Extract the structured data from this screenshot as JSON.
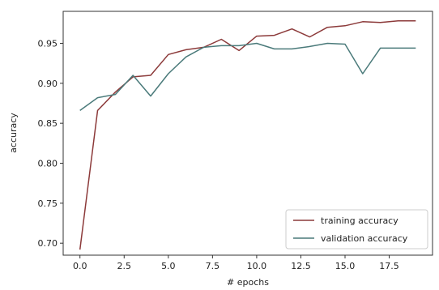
{
  "chart_data": {
    "type": "line",
    "title": "",
    "xlabel": "# epochs",
    "ylabel": "accuracy",
    "xlim": [
      -0.95,
      19.95
    ],
    "ylim": [
      0.685,
      0.99
    ],
    "xticks": [
      0.0,
      2.5,
      5.0,
      7.5,
      10.0,
      12.5,
      15.0,
      17.5
    ],
    "xtick_labels": [
      "0.0",
      "2.5",
      "5.0",
      "7.5",
      "10.0",
      "12.5",
      "15.0",
      "17.5"
    ],
    "yticks": [
      0.7,
      0.75,
      0.8,
      0.85,
      0.9,
      0.95
    ],
    "ytick_labels": [
      "0.70",
      "0.75",
      "0.80",
      "0.85",
      "0.90",
      "0.95"
    ],
    "grid": false,
    "legend_position": "bottom-right",
    "x": [
      0,
      1,
      2,
      3,
      4,
      5,
      6,
      7,
      8,
      9,
      10,
      11,
      12,
      13,
      14,
      15,
      16,
      17,
      18,
      19
    ],
    "series": [
      {
        "name": "training accuracy",
        "color": "#8c3a3a",
        "values": [
          0.692,
          0.866,
          0.889,
          0.908,
          0.91,
          0.936,
          0.942,
          0.945,
          0.955,
          0.941,
          0.959,
          0.96,
          0.968,
          0.958,
          0.97,
          0.972,
          0.977,
          0.976,
          0.978,
          0.978
        ]
      },
      {
        "name": "validation accuracy",
        "color": "#4a7a7a",
        "values": [
          0.866,
          0.882,
          0.886,
          0.91,
          0.884,
          0.912,
          0.933,
          0.945,
          0.947,
          0.947,
          0.95,
          0.943,
          0.943,
          0.946,
          0.95,
          0.949,
          0.912,
          0.944,
          0.944,
          0.944
        ]
      }
    ]
  }
}
